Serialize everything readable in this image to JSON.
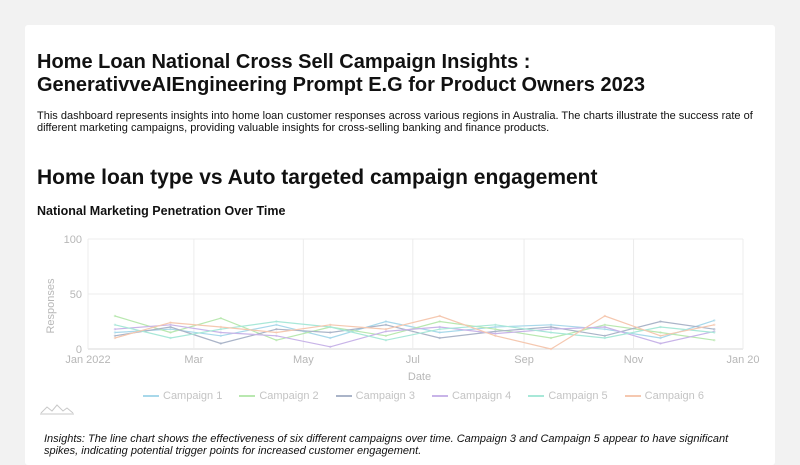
{
  "header": {
    "title": "Home Loan National Cross Sell Campaign Insights : GenerativveAIEngineering Prompt E.G for Product Owners 2023",
    "description": "This dashboard represents insights into home loan customer responses across various regions in Australia. The charts illustrate the success rate of different marketing campaigns, providing valuable insights for cross-selling banking and finance products."
  },
  "section": {
    "title": "Home loan type vs Auto targeted campaign engagement"
  },
  "insights": "Insights: The line chart shows the effectiveness of six different campaigns over time. Campaign 3 and Campaign 5 appear to have significant spikes, indicating potential trigger points for increased customer engagement.",
  "chart_data": {
    "type": "line",
    "title": "National Marketing Penetration Over Time",
    "xlabel": "Date",
    "ylabel": "Responses",
    "ylim": [
      0,
      100
    ],
    "yticks": [
      0,
      50,
      100
    ],
    "xlim": [
      "2022-01-01",
      "2023-01-01"
    ],
    "xticks": [
      {
        "date": "2022-01-01",
        "label": "Jan 2022"
      },
      {
        "date": "2022-03-01",
        "label": "Mar"
      },
      {
        "date": "2022-05-01",
        "label": "May"
      },
      {
        "date": "2022-07-01",
        "label": "Jul"
      },
      {
        "date": "2022-09-01",
        "label": "Sep"
      },
      {
        "date": "2022-11-01",
        "label": "Nov"
      },
      {
        "date": "2023-01-01",
        "label": "Jan 20"
      }
    ],
    "grid": true,
    "legend_position": "bottom",
    "x": [
      "2022-01-16",
      "2022-02-16",
      "2022-03-16",
      "2022-04-16",
      "2022-05-16",
      "2022-06-16",
      "2022-07-16",
      "2022-08-16",
      "2022-09-16",
      "2022-10-16",
      "2022-11-16",
      "2022-12-16"
    ],
    "series": [
      {
        "name": "Campaign 1",
        "color": "#a8d8ea",
        "values": [
          15,
          18,
          12,
          22,
          10,
          25,
          15,
          20,
          22,
          18,
          10,
          26
        ]
      },
      {
        "name": "Campaign 2",
        "color": "#b9e8b0",
        "values": [
          30,
          15,
          28,
          8,
          20,
          12,
          25,
          18,
          10,
          22,
          15,
          8
        ]
      },
      {
        "name": "Campaign 3",
        "color": "#aab4c8",
        "values": [
          12,
          20,
          5,
          18,
          15,
          22,
          10,
          16,
          20,
          12,
          25,
          18
        ]
      },
      {
        "name": "Campaign 4",
        "color": "#c8b4e8",
        "values": [
          18,
          22,
          15,
          12,
          2,
          16,
          20,
          14,
          18,
          20,
          5,
          16
        ]
      },
      {
        "name": "Campaign 5",
        "color": "#a8e8d8",
        "values": [
          22,
          10,
          18,
          25,
          20,
          8,
          18,
          22,
          15,
          10,
          20,
          15
        ]
      },
      {
        "name": "Campaign 6",
        "color": "#f5c8b0",
        "values": [
          10,
          24,
          20,
          15,
          22,
          18,
          30,
          12,
          0,
          30,
          12,
          22
        ]
      }
    ]
  }
}
